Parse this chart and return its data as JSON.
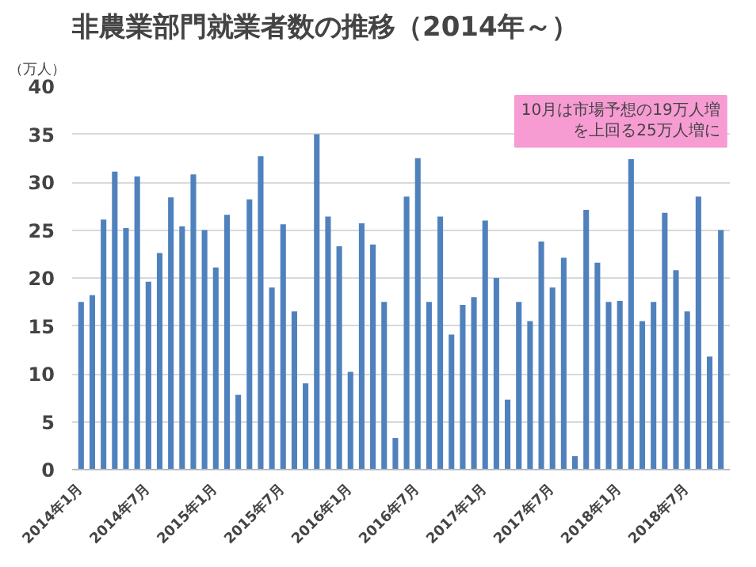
{
  "chart_data": {
    "type": "bar",
    "title": "非農業部門就業者数の推移（2014年～）",
    "ylabel": "（万人）",
    "categories": [
      "2014年1月",
      null,
      null,
      null,
      null,
      null,
      "2014年7月",
      null,
      null,
      null,
      null,
      null,
      "2015年1月",
      null,
      null,
      null,
      null,
      null,
      "2015年7月",
      null,
      null,
      null,
      null,
      null,
      "2016年1月",
      null,
      null,
      null,
      null,
      null,
      "2016年7月",
      null,
      null,
      null,
      null,
      null,
      "2017年1月",
      null,
      null,
      null,
      null,
      null,
      "2017年7月",
      null,
      null,
      null,
      null,
      null,
      "2018年1月",
      null,
      null,
      null,
      null,
      null,
      "2018年7月",
      null,
      null,
      null
    ],
    "values": [
      17.5,
      18.2,
      26.1,
      31.1,
      25.2,
      30.6,
      19.6,
      22.6,
      28.4,
      25.4,
      30.8,
      25.0,
      21.1,
      26.6,
      7.8,
      28.2,
      32.7,
      19.0,
      25.6,
      16.5,
      9.0,
      35.0,
      26.4,
      23.3,
      10.2,
      25.7,
      23.5,
      17.5,
      3.3,
      28.5,
      32.5,
      17.5,
      26.4,
      14.1,
      17.2,
      18.0,
      26.0,
      20.0,
      7.3,
      17.5,
      15.5,
      23.8,
      19.0,
      22.1,
      1.4,
      27.1,
      21.6,
      17.5,
      17.6,
      32.4,
      15.5,
      17.5,
      26.8,
      20.8,
      16.5,
      28.5,
      11.8,
      25.0
    ],
    "color": "#4f81bd",
    "ylim": [
      0,
      40
    ],
    "yticks": [
      0,
      5,
      10,
      15,
      20,
      25,
      30,
      35,
      40
    ],
    "grid": "y",
    "annotations": [
      "10月は市場予想の19万人増を上回る25万人増に"
    ]
  }
}
